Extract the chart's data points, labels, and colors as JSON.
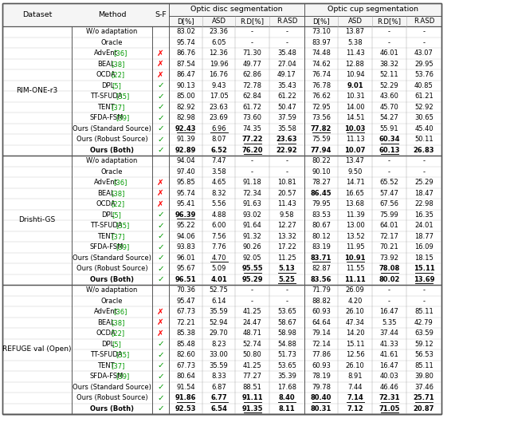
{
  "sections": [
    {
      "dataset": "RIM-ONE-r3",
      "rows": [
        {
          "method": "W/o adaptation",
          "sf": "",
          "vals": [
            "83.02",
            "23.36",
            "-",
            "-",
            "73.10",
            "13.87",
            "-",
            "-"
          ],
          "bold": false
        },
        {
          "method": "Oracle",
          "sf": "",
          "vals": [
            "95.74",
            "6.05",
            "-",
            "-",
            "83.97",
            "5.38",
            "-",
            "-"
          ],
          "bold": false
        },
        {
          "method": "AdvEnt [36]",
          "sf": "red_x",
          "vals": [
            "86.76",
            "12.36",
            "71.30",
            "35.48",
            "74.48",
            "11.43",
            "46.01",
            "43.07"
          ],
          "bold": false
        },
        {
          "method": "BEAL [38]",
          "sf": "red_x",
          "vals": [
            "87.54",
            "19.96",
            "49.77",
            "27.04",
            "74.62",
            "12.88",
            "38.32",
            "29.95"
          ],
          "bold": false
        },
        {
          "method": "OCDA [22]",
          "sf": "red_x",
          "vals": [
            "86.47",
            "16.76",
            "62.86",
            "49.17",
            "76.74",
            "10.94",
            "52.11",
            "53.76"
          ],
          "bold": false
        },
        {
          "method": "DPL [5]",
          "sf": "green_check",
          "vals": [
            "90.13",
            "9.43",
            "72.78",
            "35.43",
            "76.78",
            "9.01",
            "52.29",
            "40.85"
          ],
          "bold": false
        },
        {
          "method": "TT-SFUDA [35]",
          "sf": "green_check",
          "vals": [
            "85.00",
            "17.05",
            "62.84",
            "61.22",
            "76.62",
            "10.31",
            "43.60",
            "61.21"
          ],
          "bold": false
        },
        {
          "method": "TENT [37]",
          "sf": "green_check",
          "vals": [
            "82.92",
            "23.63",
            "61.72",
            "50.47",
            "72.95",
            "14.00",
            "45.70",
            "52.92"
          ],
          "bold": false
        },
        {
          "method": "SFDA-FSM [39]",
          "sf": "green_check",
          "vals": [
            "82.98",
            "23.69",
            "73.60",
            "37.59",
            "73.56",
            "14.51",
            "54.27",
            "30.65"
          ],
          "bold": false
        },
        {
          "method": "Ours (Standard Source)",
          "sf": "green_check",
          "vals": [
            "92.43",
            "6.96",
            "74.35",
            "35.58",
            "77.82",
            "10.03",
            "55.91",
            "45.40"
          ],
          "bold": false
        },
        {
          "method": "Ours (Robust Source)",
          "sf": "green_check",
          "vals": [
            "91.39",
            "8.07",
            "77.22",
            "23.63",
            "75.59",
            "11.13",
            "60.34",
            "50.11"
          ],
          "bold": false
        },
        {
          "method": "Ours (Both)",
          "sf": "green_check",
          "vals": [
            "92.89",
            "6.52",
            "76.20",
            "22.92",
            "77.94",
            "10.07",
            "60.13",
            "26.83"
          ],
          "bold": true
        }
      ]
    },
    {
      "dataset": "Drishti-GS",
      "rows": [
        {
          "method": "W/o adaptation",
          "sf": "",
          "vals": [
            "94.04",
            "7.47",
            "-",
            "-",
            "80.22",
            "13.47",
            "-",
            "-"
          ],
          "bold": false
        },
        {
          "method": "Oracle",
          "sf": "",
          "vals": [
            "97.40",
            "3.58",
            "-",
            "-",
            "90.10",
            "9.50",
            "-",
            "-"
          ],
          "bold": false
        },
        {
          "method": "AdvEnt [36]",
          "sf": "red_x",
          "vals": [
            "95.85",
            "4.65",
            "91.18",
            "10.81",
            "78.27",
            "14.71",
            "65.52",
            "25.29"
          ],
          "bold": false
        },
        {
          "method": "BEAL [38]",
          "sf": "red_x",
          "vals": [
            "95.74",
            "8.32",
            "72.34",
            "20.57",
            "86.45",
            "16.65",
            "57.47",
            "18.47"
          ],
          "bold": false
        },
        {
          "method": "OCDA [22]",
          "sf": "red_x",
          "vals": [
            "95.41",
            "5.56",
            "91.63",
            "11.43",
            "79.95",
            "13.68",
            "67.56",
            "22.98"
          ],
          "bold": false
        },
        {
          "method": "DPL [5]",
          "sf": "green_check",
          "vals": [
            "96.39",
            "4.88",
            "93.02",
            "9.58",
            "83.53",
            "11.39",
            "75.99",
            "16.35"
          ],
          "bold": false
        },
        {
          "method": "TT-SFUDA [35]",
          "sf": "green_check",
          "vals": [
            "95.22",
            "6.00",
            "91.64",
            "12.27",
            "80.67",
            "13.00",
            "64.01",
            "24.01"
          ],
          "bold": false
        },
        {
          "method": "TENT [37]",
          "sf": "green_check",
          "vals": [
            "94.06",
            "7.56",
            "91.32",
            "13.32",
            "80.12",
            "13.52",
            "72.17",
            "18.77"
          ],
          "bold": false
        },
        {
          "method": "SFDA-FSM [39]",
          "sf": "green_check",
          "vals": [
            "93.83",
            "7.76",
            "90.26",
            "17.22",
            "83.19",
            "11.95",
            "70.21",
            "16.09"
          ],
          "bold": false
        },
        {
          "method": "Ours (Standard Source)",
          "sf": "green_check",
          "vals": [
            "96.01",
            "4.70",
            "92.05",
            "11.25",
            "83.71",
            "10.91",
            "73.92",
            "18.15"
          ],
          "bold": false
        },
        {
          "method": "Ours (Robust Source)",
          "sf": "green_check",
          "vals": [
            "95.67",
            "5.09",
            "95.55",
            "5.13",
            "82.87",
            "11.55",
            "78.08",
            "15.11"
          ],
          "bold": false
        },
        {
          "method": "Ours (Both)",
          "sf": "green_check",
          "vals": [
            "96.51",
            "4.01",
            "95.29",
            "5.25",
            "83.56",
            "11.11",
            "80.02",
            "13.69"
          ],
          "bold": true
        }
      ]
    },
    {
      "dataset": "REFUGE val (Open)",
      "rows": [
        {
          "method": "W/o adaptation",
          "sf": "",
          "vals": [
            "70.36",
            "52.75",
            "-",
            "-",
            "71.79",
            "26.09",
            "-",
            "-"
          ],
          "bold": false
        },
        {
          "method": "Oracle",
          "sf": "",
          "vals": [
            "95.47",
            "6.14",
            "-",
            "-",
            "88.82",
            "4.20",
            "-",
            "-"
          ],
          "bold": false
        },
        {
          "method": "AdvEnt [36]",
          "sf": "red_x",
          "vals": [
            "67.73",
            "35.59",
            "41.25",
            "53.65",
            "60.93",
            "26.10",
            "16.47",
            "85.11"
          ],
          "bold": false
        },
        {
          "method": "BEAL [38]",
          "sf": "red_x",
          "vals": [
            "72.21",
            "52.94",
            "24.47",
            "58.67",
            "64.64",
            "47.34",
            "5.35",
            "42.79"
          ],
          "bold": false
        },
        {
          "method": "OCDA [22]",
          "sf": "red_x",
          "vals": [
            "85.38",
            "29.70",
            "48.71",
            "58.98",
            "79.14",
            "14.20",
            "37.44",
            "63.59"
          ],
          "bold": false
        },
        {
          "method": "DPL [5]",
          "sf": "green_check",
          "vals": [
            "85.48",
            "8.23",
            "52.74",
            "54.88",
            "72.14",
            "15.11",
            "41.33",
            "59.12"
          ],
          "bold": false
        },
        {
          "method": "TT-SFUDA [35]",
          "sf": "green_check",
          "vals": [
            "82.60",
            "33.00",
            "50.80",
            "51.73",
            "77.86",
            "12.56",
            "41.61",
            "56.53"
          ],
          "bold": false
        },
        {
          "method": "TENT [37]",
          "sf": "green_check",
          "vals": [
            "67.73",
            "35.59",
            "41.25",
            "53.65",
            "60.93",
            "26.10",
            "16.47",
            "85.11"
          ],
          "bold": false
        },
        {
          "method": "SFDA-FSM [39]",
          "sf": "green_check",
          "vals": [
            "80.64",
            "8.33",
            "77.27",
            "35.39",
            "78.19",
            "8.91",
            "40.03",
            "39.80"
          ],
          "bold": false
        },
        {
          "method": "Ours (Standard Source)",
          "sf": "green_check",
          "vals": [
            "91.54",
            "6.87",
            "88.51",
            "17.68",
            "79.78",
            "7.44",
            "46.46",
            "37.46"
          ],
          "bold": false
        },
        {
          "method": "Ours (Robust Source)",
          "sf": "green_check",
          "vals": [
            "91.86",
            "6.77",
            "91.11",
            "8.40",
            "80.40",
            "7.14",
            "72.31",
            "25.71"
          ],
          "bold": false
        },
        {
          "method": "Ours (Both)",
          "sf": "green_check",
          "vals": [
            "92.53",
            "6.54",
            "91.35",
            "8.11",
            "80.31",
            "7.12",
            "71.05",
            "20.87"
          ],
          "bold": true
        }
      ]
    }
  ],
  "bold_cells": {
    "RIM-ONE-r3": {
      "DPL [5]": [
        5
      ],
      "Ours (Standard Source)": [
        0,
        4,
        5
      ],
      "Ours (Robust Source)": [
        2,
        3,
        6
      ],
      "Ours (Both)": [
        0,
        1,
        2,
        3,
        4,
        5,
        6,
        7
      ]
    },
    "Drishti-GS": {
      "BEAL [38]": [
        4
      ],
      "DPL [5]": [
        0
      ],
      "Ours (Standard Source)": [
        4,
        5
      ],
      "Ours (Robust Source)": [
        2,
        3,
        6,
        7
      ],
      "Ours (Both)": [
        0,
        1,
        2,
        3,
        6,
        7
      ]
    },
    "REFUGE val (Open)": {
      "Ours (Robust Source)": [
        0,
        1,
        2,
        3,
        4,
        5,
        6,
        7
      ],
      "Ours (Both)": [
        0,
        1,
        2,
        3,
        5,
        6
      ]
    }
  },
  "underline_cells": {
    "RIM-ONE-r3": {
      "Ours (Standard Source)": [
        0,
        1,
        4,
        5
      ],
      "Ours (Robust Source)": [
        2,
        3,
        6
      ],
      "Ours (Both)": [
        2,
        6
      ]
    },
    "Drishti-GS": {
      "DPL [5]": [
        0
      ],
      "Ours (Standard Source)": [
        1,
        4,
        5
      ],
      "Ours (Robust Source)": [
        2,
        3,
        6,
        7
      ],
      "Ours (Both)": [
        3,
        7
      ]
    },
    "REFUGE val (Open)": {
      "Ours (Robust Source)": [
        0,
        1,
        2,
        3,
        4,
        5,
        6,
        7
      ],
      "Ours (Both)": [
        2,
        6
      ]
    }
  }
}
